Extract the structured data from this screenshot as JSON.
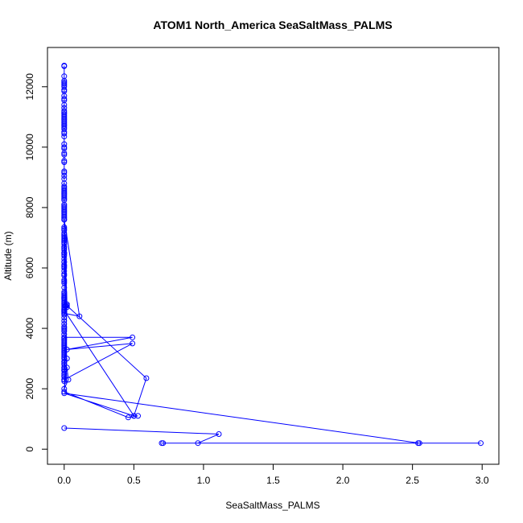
{
  "chart_data": {
    "type": "scatter",
    "title": "ATOM1 North_America SeaSaltMass_PALMS",
    "xlabel": "SeaSaltMass_PALMS",
    "ylabel": "Altitude (m)",
    "xlim": [
      -0.12,
      3.12
    ],
    "ylim": [
      -500,
      13300
    ],
    "xticks": [
      0.0,
      0.5,
      1.0,
      1.5,
      2.0,
      2.5,
      3.0
    ],
    "xtick_labels": [
      "0.0",
      "0.5",
      "1.0",
      "1.5",
      "2.0",
      "2.5",
      "3.0"
    ],
    "yticks": [
      0,
      2000,
      4000,
      6000,
      8000,
      10000,
      12000
    ],
    "ytick_labels": [
      "0",
      "2000",
      "4000",
      "6000",
      "8000",
      "10000",
      "12000"
    ],
    "grid": false,
    "legend": "none",
    "series": [
      {
        "color": "#0000ff",
        "marker": "open-circle",
        "connected": true,
        "x": [
          0.0,
          0.0,
          0.0,
          0.0,
          0.0,
          0.0,
          0.0,
          0.0,
          0.0,
          0.0,
          0.0,
          0.0,
          0.0,
          0.0,
          0.0,
          0.0,
          0.0,
          0.0,
          0.0,
          0.0,
          0.0,
          0.0,
          0.0,
          0.0,
          0.0,
          0.0,
          0.0,
          0.0,
          0.0,
          0.0,
          0.0,
          0.0,
          0.0,
          0.0,
          0.0,
          0.0,
          0.0,
          0.0,
          0.0,
          0.0,
          0.0,
          0.0,
          0.0,
          0.0,
          0.0,
          0.0,
          0.0,
          0.0,
          0.0,
          0.0,
          0.0,
          0.0,
          0.0,
          0.0,
          0.0,
          0.0,
          0.0,
          0.0,
          0.0,
          0.0,
          0.0,
          0.0,
          0.0,
          0.0,
          0.0,
          0.0,
          0.0,
          0.0,
          0.0,
          0.0,
          0.0,
          0.0,
          0.0,
          0.0,
          0.0,
          0.0,
          0.0,
          0.0,
          0.0,
          0.0,
          0.0,
          0.0,
          0.0,
          0.0,
          0.0,
          0.0,
          0.0,
          0.0,
          0.0,
          0.0,
          0.0,
          0.0,
          0.0,
          0.0,
          0.0,
          0.0,
          0.0,
          0.0,
          0.0,
          0.0,
          0.0,
          0.0,
          0.0,
          0.0,
          0.0,
          0.0,
          0.0,
          0.0,
          0.0,
          0.0,
          0.0,
          0.0,
          0.0,
          0.0,
          0.0,
          0.0,
          0.0,
          0.0,
          0.0,
          0.0,
          0.0,
          0.0,
          0.0,
          0.0,
          0.0,
          0.0,
          0.0,
          0.0,
          0.0,
          0.0,
          0.0,
          0.0,
          0.0,
          0.0,
          0.0,
          0.0,
          0.0,
          0.0,
          0.0,
          0.0,
          0.02,
          0.0,
          0.01,
          0.0,
          0.0,
          0.02,
          0.0,
          0.0,
          0.5,
          0.59,
          0.02,
          0.0,
          0.11,
          0.0,
          0.0,
          0.0,
          0.0,
          0.0,
          0.49,
          0.02,
          0.49,
          0.0,
          0.0,
          0.0,
          0.0,
          0.02,
          0.03,
          0.0,
          0.02,
          0.0,
          0.46,
          0.53,
          0.5,
          0.0,
          2.55,
          2.54,
          2.99,
          0.71,
          0.7,
          0.96,
          1.11,
          0.0
        ],
        "y": [
          12700,
          12680,
          12350,
          12200,
          12150,
          12100,
          12050,
          12000,
          11900,
          11850,
          11700,
          11600,
          11550,
          11400,
          11300,
          11200,
          11150,
          11100,
          11050,
          11000,
          10950,
          10900,
          10850,
          10800,
          10750,
          10700,
          10650,
          10600,
          10500,
          10450,
          10350,
          10100,
          10000,
          9950,
          9800,
          9750,
          9550,
          9500,
          9200,
          9150,
          9050,
          8950,
          8800,
          8700,
          8650,
          8600,
          8550,
          8500,
          8450,
          8400,
          8350,
          8300,
          8250,
          8100,
          8050,
          8000,
          7950,
          7900,
          7850,
          7800,
          7750,
          7700,
          7650,
          7350,
          7300,
          7250,
          7150,
          7100,
          7050,
          7000,
          6900,
          6850,
          6800,
          6700,
          6650,
          6600,
          6500,
          6450,
          6400,
          6300,
          6200,
          6100,
          6050,
          6000,
          5800,
          5750,
          5600,
          5550,
          5500,
          5350,
          5200,
          5150,
          5100,
          5050,
          5000,
          4950,
          4900,
          4850,
          4800,
          4750,
          4700,
          4650,
          4600,
          4550,
          4500,
          4450,
          4350,
          4250,
          4150,
          4050,
          4000,
          3950,
          3900,
          3800,
          3700,
          3650,
          3600,
          3550,
          3500,
          3450,
          3400,
          3350,
          3300,
          3250,
          3200,
          3150,
          3100,
          3050,
          3000,
          2900,
          2850,
          2800,
          2700,
          2650,
          2600,
          2500,
          2450,
          2400,
          2300,
          2250,
          4800,
          7600,
          4750,
          5000,
          6950,
          4700,
          4550,
          4600,
          1100,
          2350,
          4750,
          7600,
          4400,
          4500,
          6500,
          6200,
          5900,
          3700,
          3700,
          3300,
          3500,
          2300,
          2900,
          2700,
          2600,
          2700,
          2300,
          2000,
          3000,
          1900,
          1050,
          1100,
          1100,
          1850,
          200,
          200,
          200,
          200,
          200,
          200,
          500,
          700
        ]
      }
    ]
  }
}
